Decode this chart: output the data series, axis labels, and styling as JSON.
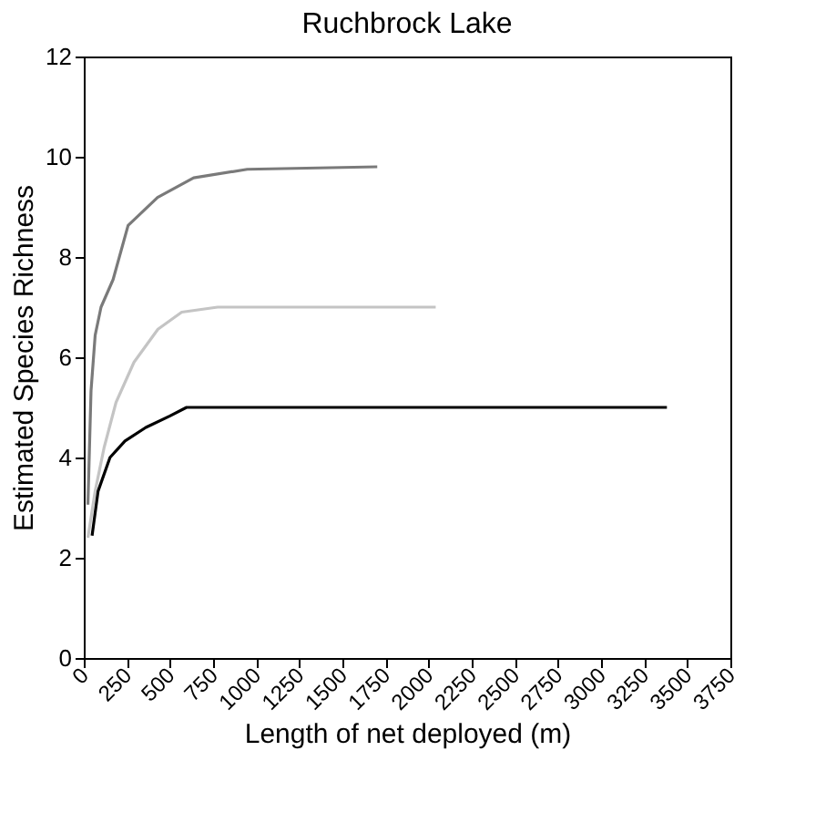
{
  "chart_data": {
    "type": "line",
    "title": "Ruchbrock Lake",
    "xlabel": "Length of net deployed (m)",
    "ylabel": "Estimated Species Richness",
    "xlim": [
      0,
      3750
    ],
    "xticks": [
      0,
      250,
      500,
      750,
      1000,
      1250,
      1500,
      1750,
      2000,
      2250,
      2500,
      2750,
      3000,
      3250,
      3500,
      3750
    ],
    "ylim": [
      0,
      12
    ],
    "yticks": [
      0,
      2,
      4,
      6,
      8,
      10,
      12
    ],
    "grid": false,
    "marker": "none",
    "line_style": "solid",
    "series": [
      {
        "color": "#7a7a7a",
        "x": [
          24,
          42,
          66,
          100,
          170,
          257,
          428,
          637,
          948,
          1702
        ],
        "values": [
          3.06,
          5.33,
          6.44,
          7.0,
          7.55,
          8.63,
          9.19,
          9.58,
          9.75,
          9.8
        ]
      },
      {
        "color": "#c4c4c4",
        "x": [
          24,
          66,
          118,
          187,
          291,
          430,
          568,
          776,
          2041
        ],
        "values": [
          2.4,
          3.33,
          4.2,
          5.1,
          5.9,
          6.56,
          6.9,
          7.0,
          7.0
        ]
      },
      {
        "color": "#000000",
        "x": [
          48,
          83,
          152,
          239,
          360,
          500,
          596,
          3382
        ],
        "values": [
          2.44,
          3.33,
          4.0,
          4.33,
          4.6,
          4.83,
          5.0,
          5.0
        ]
      }
    ]
  }
}
